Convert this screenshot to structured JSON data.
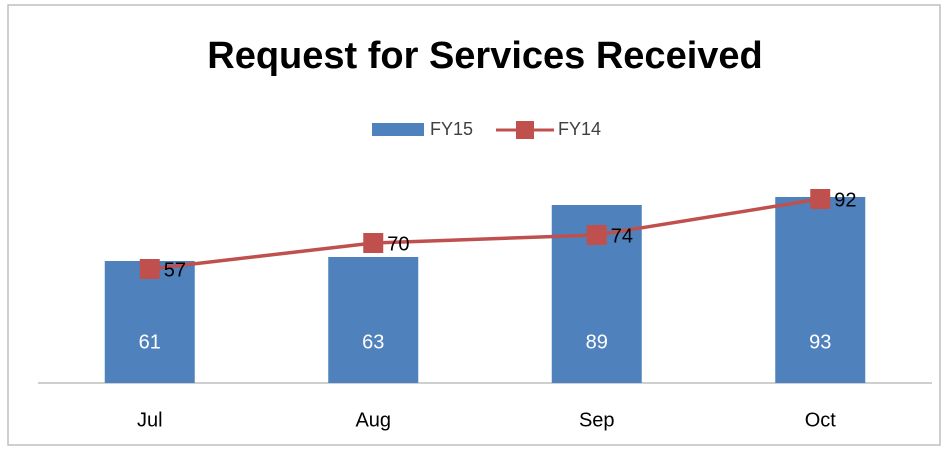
{
  "chart_data": {
    "type": "bar_line",
    "title": "Request for Services Received",
    "categories": [
      "Jul",
      "Aug",
      "Sep",
      "Oct"
    ],
    "series": [
      {
        "name": "FY15",
        "type": "bar",
        "color": "#4f81bd",
        "values": [
          61,
          63,
          89,
          93
        ]
      },
      {
        "name": "FY14",
        "type": "line",
        "color": "#c0504d",
        "values": [
          57,
          70,
          74,
          92
        ]
      }
    ],
    "ylim": [
      0,
      100
    ],
    "legend": "top"
  }
}
